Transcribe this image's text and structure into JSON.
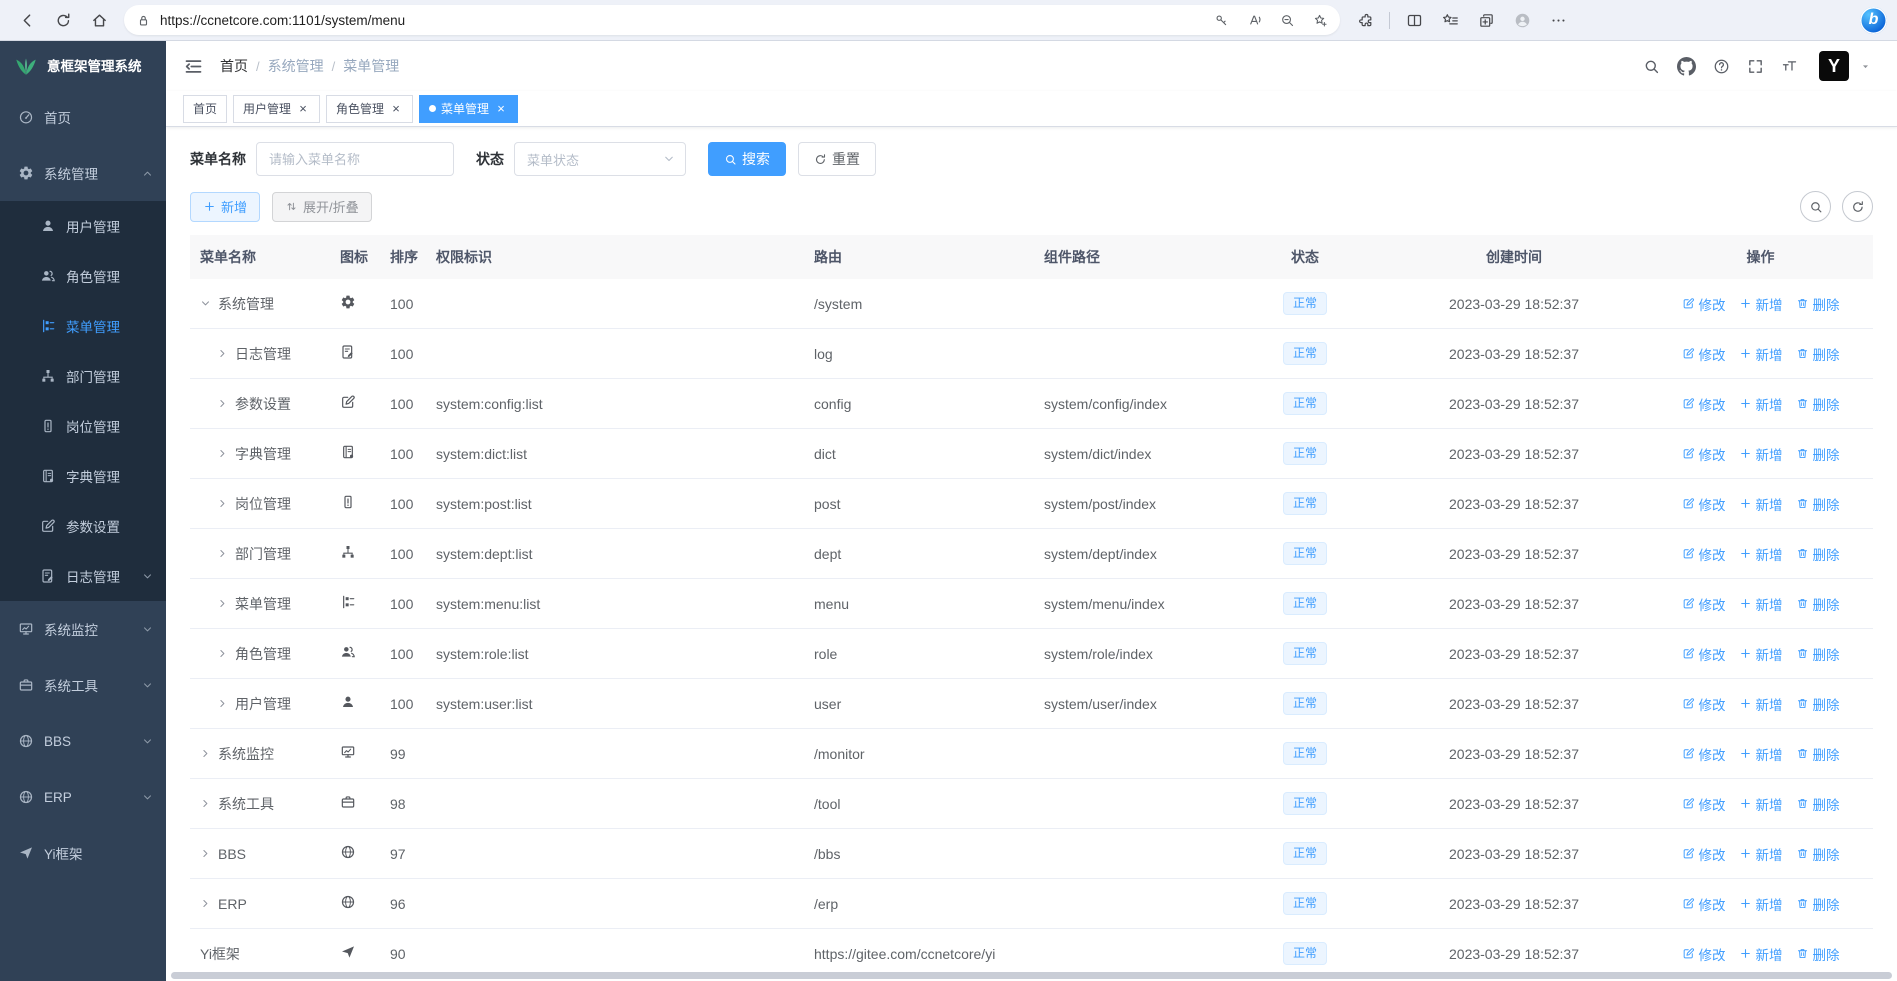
{
  "colors": {
    "accent": "#409eff",
    "sidebar_bg": "#304156",
    "submenu_bg": "#1f2d3d",
    "logo_green": "#3eaf7c",
    "tag_active_bg": "#409eff",
    "status_tag_bg": "#ecf5ff",
    "status_tag_text": "#409eff"
  },
  "browser": {
    "url": "https://ccnetcore.com:1101/system/menu",
    "left_icons": [
      "back",
      "reload",
      "home"
    ],
    "pill_icons": [
      "lock",
      "key",
      "read-aloud",
      "zoom-out",
      "star-add"
    ],
    "right_icons": [
      "puzzle",
      "split",
      "star-list",
      "collections",
      "avatar",
      "dots3",
      "bing"
    ],
    "bing_label": "b"
  },
  "sidebar": {
    "title": "意框架管理系统",
    "items": [
      {
        "id": "home",
        "label": "首页",
        "icon": "dashboard"
      },
      {
        "id": "system",
        "label": "系统管理",
        "icon": "gear",
        "expanded": true,
        "children": [
          {
            "id": "user",
            "label": "用户管理",
            "icon": "user"
          },
          {
            "id": "role",
            "label": "角色管理",
            "icon": "users"
          },
          {
            "id": "menu",
            "label": "菜单管理",
            "icon": "menu-list",
            "active": true
          },
          {
            "id": "dept",
            "label": "部门管理",
            "icon": "org-tree"
          },
          {
            "id": "post",
            "label": "岗位管理",
            "icon": "badge"
          },
          {
            "id": "dict",
            "label": "字典管理",
            "icon": "book"
          },
          {
            "id": "config",
            "label": "参数设置",
            "icon": "edit-square"
          },
          {
            "id": "log",
            "label": "日志管理",
            "icon": "doc-edit",
            "caret": "down"
          }
        ]
      },
      {
        "id": "monitor",
        "label": "系统监控",
        "icon": "monitor",
        "caret": "down"
      },
      {
        "id": "tool",
        "label": "系统工具",
        "icon": "briefcase",
        "caret": "down"
      },
      {
        "id": "bbs",
        "label": "BBS",
        "icon": "globe",
        "caret": "down"
      },
      {
        "id": "erp",
        "label": "ERP",
        "icon": "globe",
        "caret": "down"
      },
      {
        "id": "yi",
        "label": "Yi框架",
        "icon": "paper-plane"
      }
    ]
  },
  "navbar": {
    "breadcrumb": [
      "首页",
      "系统管理",
      "菜单管理"
    ],
    "action_icons": [
      "search",
      "github",
      "question",
      "fullscreen",
      "font-size"
    ],
    "logo_letter": "Y"
  },
  "tabs": [
    {
      "label": "首页",
      "closable": false,
      "active": false
    },
    {
      "label": "用户管理",
      "closable": true,
      "active": false
    },
    {
      "label": "角色管理",
      "closable": true,
      "active": false
    },
    {
      "label": "菜单管理",
      "closable": true,
      "active": true
    }
  ],
  "filters": {
    "name_label": "菜单名称",
    "name_placeholder": "请输入菜单名称",
    "name_value": "",
    "status_label": "状态",
    "status_placeholder": "菜单状态",
    "search_label": "搜索",
    "reset_label": "重置"
  },
  "toolbar": {
    "add_label": "新增",
    "toggle_label": "展开/折叠"
  },
  "table": {
    "columns": [
      "菜单名称",
      "图标",
      "排序",
      "权限标识",
      "路由",
      "组件路径",
      "状态",
      "创建时间",
      "操作"
    ],
    "op_labels": {
      "edit": "修改",
      "add": "新增",
      "delete": "删除"
    },
    "rows": [
      {
        "name": "系统管理",
        "icon": "gear",
        "sort": "100",
        "perm": "",
        "route": "/system",
        "component": "",
        "status": "正常",
        "created": "2023-03-29 18:52:37",
        "level": 0,
        "arrow": "down"
      },
      {
        "name": "日志管理",
        "icon": "doc-edit",
        "sort": "100",
        "perm": "",
        "route": "log",
        "component": "",
        "status": "正常",
        "created": "2023-03-29 18:52:37",
        "level": 1,
        "arrow": "right"
      },
      {
        "name": "参数设置",
        "icon": "edit-square",
        "sort": "100",
        "perm": "system:config:list",
        "route": "config",
        "component": "system/config/index",
        "status": "正常",
        "created": "2023-03-29 18:52:37",
        "level": 1,
        "arrow": "right"
      },
      {
        "name": "字典管理",
        "icon": "book",
        "sort": "100",
        "perm": "system:dict:list",
        "route": "dict",
        "component": "system/dict/index",
        "status": "正常",
        "created": "2023-03-29 18:52:37",
        "level": 1,
        "arrow": "right"
      },
      {
        "name": "岗位管理",
        "icon": "badge",
        "sort": "100",
        "perm": "system:post:list",
        "route": "post",
        "component": "system/post/index",
        "status": "正常",
        "created": "2023-03-29 18:52:37",
        "level": 1,
        "arrow": "right"
      },
      {
        "name": "部门管理",
        "icon": "org-tree",
        "sort": "100",
        "perm": "system:dept:list",
        "route": "dept",
        "component": "system/dept/index",
        "status": "正常",
        "created": "2023-03-29 18:52:37",
        "level": 1,
        "arrow": "right"
      },
      {
        "name": "菜单管理",
        "icon": "menu-list",
        "sort": "100",
        "perm": "system:menu:list",
        "route": "menu",
        "component": "system/menu/index",
        "status": "正常",
        "created": "2023-03-29 18:52:37",
        "level": 1,
        "arrow": "right"
      },
      {
        "name": "角色管理",
        "icon": "users",
        "sort": "100",
        "perm": "system:role:list",
        "route": "role",
        "component": "system/role/index",
        "status": "正常",
        "created": "2023-03-29 18:52:37",
        "level": 1,
        "arrow": "right"
      },
      {
        "name": "用户管理",
        "icon": "user",
        "sort": "100",
        "perm": "system:user:list",
        "route": "user",
        "component": "system/user/index",
        "status": "正常",
        "created": "2023-03-29 18:52:37",
        "level": 1,
        "arrow": "right"
      },
      {
        "name": "系统监控",
        "icon": "monitor",
        "sort": "99",
        "perm": "",
        "route": "/monitor",
        "component": "",
        "status": "正常",
        "created": "2023-03-29 18:52:37",
        "level": 0,
        "arrow": "right"
      },
      {
        "name": "系统工具",
        "icon": "briefcase",
        "sort": "98",
        "perm": "",
        "route": "/tool",
        "component": "",
        "status": "正常",
        "created": "2023-03-29 18:52:37",
        "level": 0,
        "arrow": "right"
      },
      {
        "name": "BBS",
        "icon": "globe",
        "sort": "97",
        "perm": "",
        "route": "/bbs",
        "component": "",
        "status": "正常",
        "created": "2023-03-29 18:52:37",
        "level": 0,
        "arrow": "right"
      },
      {
        "name": "ERP",
        "icon": "globe",
        "sort": "96",
        "perm": "",
        "route": "/erp",
        "component": "",
        "status": "正常",
        "created": "2023-03-29 18:52:37",
        "level": 0,
        "arrow": "right"
      },
      {
        "name": "Yi框架",
        "icon": "paper-plane",
        "sort": "90",
        "perm": "",
        "route": "https://gitee.com/ccnetcore/yi",
        "component": "",
        "status": "正常",
        "created": "2023-03-29 18:52:37",
        "level": 0,
        "arrow": "none"
      }
    ]
  }
}
